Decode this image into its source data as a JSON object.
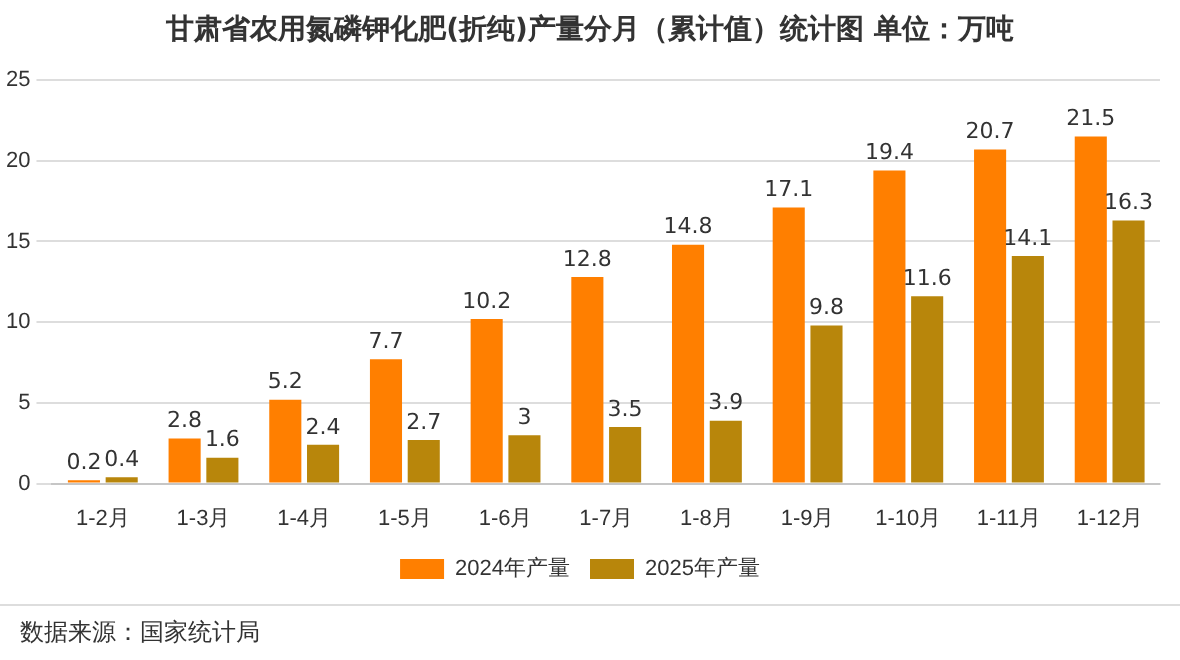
{
  "chart_data": {
    "type": "bar",
    "title": "甘肃省农用氮磷钾化肥(折纯)产量分月（累计值）统计图 单位：万吨",
    "categories": [
      "1-2月",
      "1-3月",
      "1-4月",
      "1-5月",
      "1-6月",
      "1-7月",
      "1-8月",
      "1-9月",
      "1-10月",
      "1-11月",
      "1-12月"
    ],
    "series": [
      {
        "name": "2024年产量",
        "color": "#ff7f00",
        "values": [
          0.2,
          2.8,
          5.2,
          7.7,
          10.2,
          12.8,
          14.8,
          17.1,
          19.4,
          20.7,
          21.5
        ]
      },
      {
        "name": "2025年产量",
        "color": "#b8860b",
        "values": [
          0.4,
          1.6,
          2.4,
          2.7,
          3,
          3.5,
          3.9,
          9.8,
          11.6,
          14.1,
          16.3
        ]
      }
    ],
    "ylim": [
      0,
      25
    ],
    "yticks": [
      0,
      5,
      10,
      15,
      20,
      25
    ],
    "grid": "y",
    "legend": "bottom",
    "data_labels": true,
    "annotations": [
      "数据来源：国家统计局"
    ]
  }
}
